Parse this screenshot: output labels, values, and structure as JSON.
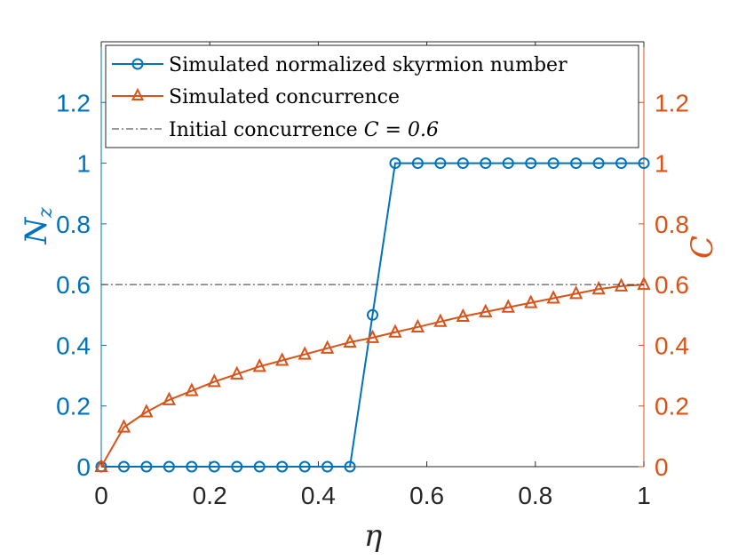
{
  "chart_data": {
    "type": "line",
    "xlabel": "η",
    "ylabel_left": "N",
    "ylabel_left_sub": "z",
    "ylabel_right": "C",
    "xlim": [
      0,
      1
    ],
    "ylim_left": [
      0,
      1.4
    ],
    "ylim_right": [
      0,
      1.4
    ],
    "x_ticks": [
      "0",
      "0.2",
      "0.4",
      "0.6",
      "0.8",
      "1"
    ],
    "x_tick_values": [
      0,
      0.2,
      0.4,
      0.6,
      0.8,
      1
    ],
    "y_ticks_left": [
      "0",
      "0.2",
      "0.4",
      "0.6",
      "0.8",
      "1",
      "1.2"
    ],
    "y_ticks_right": [
      "0",
      "0.2",
      "0.4",
      "0.6",
      "0.8",
      "1",
      "1.2"
    ],
    "y_tick_values": [
      0,
      0.2,
      0.4,
      0.6,
      0.8,
      1,
      1.2
    ],
    "colors": {
      "left_axis": "#0072BD",
      "right_axis": "#D95319",
      "x_axis": "#262626",
      "reference": "#333333"
    },
    "series": [
      {
        "name": "Simulated normalized skyrmion number",
        "axis": "left",
        "marker": "circle",
        "color": "#0072BD",
        "x": [
          0,
          0.0417,
          0.0833,
          0.125,
          0.1667,
          0.2083,
          0.25,
          0.2917,
          0.3333,
          0.375,
          0.4167,
          0.4583,
          0.5,
          0.5417,
          0.5833,
          0.625,
          0.6667,
          0.7083,
          0.75,
          0.7917,
          0.8333,
          0.875,
          0.9167,
          0.9583,
          1
        ],
        "values": [
          0,
          0,
          0,
          0,
          0,
          0,
          0,
          0,
          0,
          0,
          0,
          0,
          0.5,
          1,
          1,
          1,
          1,
          1,
          1,
          1,
          1,
          1,
          1,
          1,
          1
        ]
      },
      {
        "name": "Simulated concurrence",
        "axis": "right",
        "marker": "triangle",
        "color": "#D95319",
        "x": [
          0,
          0.0417,
          0.0833,
          0.125,
          0.1667,
          0.2083,
          0.25,
          0.2917,
          0.3333,
          0.375,
          0.4167,
          0.4583,
          0.5,
          0.5417,
          0.5833,
          0.625,
          0.6667,
          0.7083,
          0.75,
          0.7917,
          0.8333,
          0.875,
          0.9167,
          0.9583,
          1
        ],
        "values": [
          0,
          0.13,
          0.18,
          0.22,
          0.25,
          0.28,
          0.305,
          0.33,
          0.35,
          0.37,
          0.39,
          0.41,
          0.425,
          0.443,
          0.46,
          0.478,
          0.495,
          0.51,
          0.525,
          0.54,
          0.555,
          0.57,
          0.585,
          0.595,
          0.6
        ]
      },
      {
        "name": "Initial concurrence C = 0.6",
        "axis": "right",
        "style": "dashdot",
        "color": "#333333",
        "x": [
          0,
          1
        ],
        "values": [
          0.6,
          0.6
        ]
      }
    ],
    "legend": {
      "placement": "top",
      "entries": [
        "Simulated normalized skyrmion number",
        "Simulated concurrence",
        "Initial concurrence "
      ],
      "equation": "C = 0.6"
    }
  }
}
